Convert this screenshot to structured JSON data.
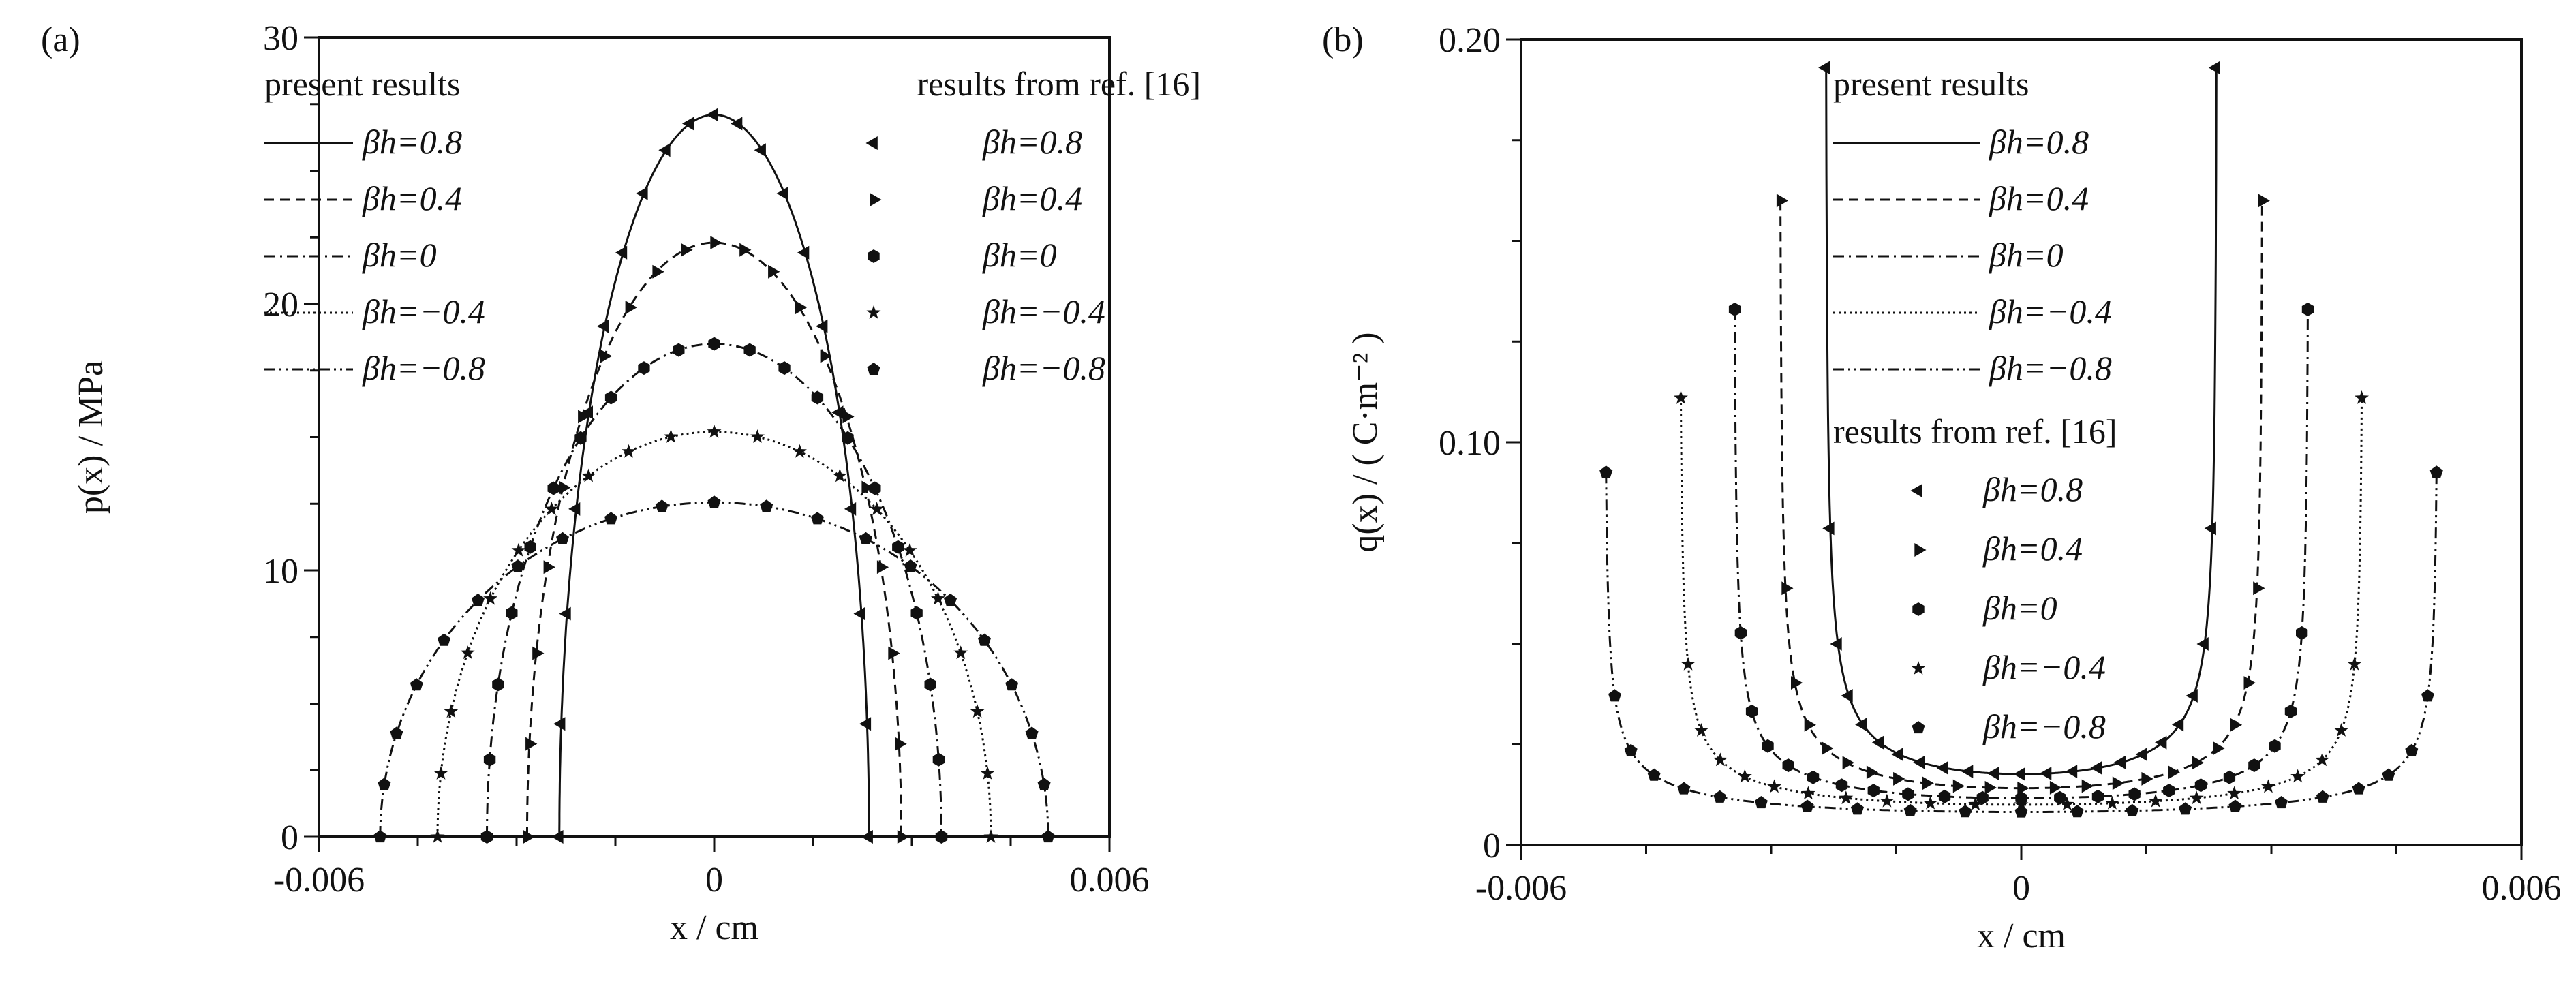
{
  "chart_data": [
    {
      "panel_label": "(a)",
      "type": "line",
      "xlabel": "x / cm",
      "ylabel": "p(x) / MPa",
      "xlim": [
        -0.006,
        0.006
      ],
      "ylim": [
        0,
        30
      ],
      "x_ticks": [
        "-0.006",
        "0",
        "0.006"
      ],
      "x_tick_values": [
        -0.006,
        0,
        0.006
      ],
      "y_ticks": [
        "0",
        "10",
        "20",
        "30"
      ],
      "y_tick_values": [
        0,
        10,
        20,
        30
      ],
      "x_minor_step": 0.0015,
      "y_minor_step": 2.5,
      "grid": false,
      "legend_present_title": "present results",
      "legend_ref_title": "results from ref. [16]",
      "series": [
        {
          "name": "βh=0.8",
          "half_width": 0.00235,
          "peak": 27.1,
          "dash": "solid",
          "marker": "triangle-left"
        },
        {
          "name": "βh=0.4",
          "half_width": 0.00284,
          "peak": 22.3,
          "dash": "dashed",
          "marker": "triangle-right"
        },
        {
          "name": "βh=0",
          "half_width": 0.00345,
          "peak": 18.5,
          "dash": "dash-dot",
          "marker": "hexagon"
        },
        {
          "name": "βh=−0.4",
          "half_width": 0.0042,
          "peak": 15.2,
          "dash": "dotted",
          "marker": "star"
        },
        {
          "name": "βh=−0.8",
          "half_width": 0.00507,
          "peak": 12.55,
          "dash": "dash-dot-dot",
          "marker": "pentagon"
        }
      ],
      "model": "p(x) = peak * sqrt(1 - (x/half_width)^2)"
    },
    {
      "panel_label": "(b)",
      "type": "line",
      "xlabel": "x / cm",
      "ylabel": "q(x) / ( C·m⁻² )",
      "xlim": [
        -0.006,
        0.006
      ],
      "ylim": [
        0,
        0.2
      ],
      "x_ticks": [
        "-0.006",
        "0",
        "0.006"
      ],
      "x_tick_values": [
        -0.006,
        0,
        0.006
      ],
      "y_ticks": [
        "0",
        "0.10",
        "0.20"
      ],
      "y_tick_values": [
        0,
        0.1,
        0.2
      ],
      "x_minor_step": 0.0015,
      "y_minor_step": 0.025,
      "grid": false,
      "legend_present_title": "present results",
      "legend_ref_title": "results from ref. [16]",
      "series": [
        {
          "name": "βh=0.8",
          "half_width": 0.00235,
          "center_value": 0.0176,
          "edge_max": 0.193,
          "dash": "solid",
          "marker": "triangle-left"
        },
        {
          "name": "βh=0.4",
          "half_width": 0.0029,
          "center_value": 0.0141,
          "edge_max": 0.16,
          "dash": "dashed",
          "marker": "triangle-right"
        },
        {
          "name": "βh=0",
          "half_width": 0.00345,
          "center_value": 0.0116,
          "edge_max": 0.133,
          "dash": "dash-dot",
          "marker": "hexagon"
        },
        {
          "name": "βh=−0.4",
          "half_width": 0.0041,
          "center_value": 0.01,
          "edge_max": 0.111,
          "dash": "dotted",
          "marker": "star"
        },
        {
          "name": "βh=−0.8",
          "half_width": 0.005,
          "center_value": 0.0082,
          "edge_max": 0.0925,
          "dash": "dash-dot-dot",
          "marker": "pentagon"
        }
      ],
      "model": "q(x) = center_value / sqrt(1 - (x/half_width)^2), capped at edge_max"
    }
  ]
}
